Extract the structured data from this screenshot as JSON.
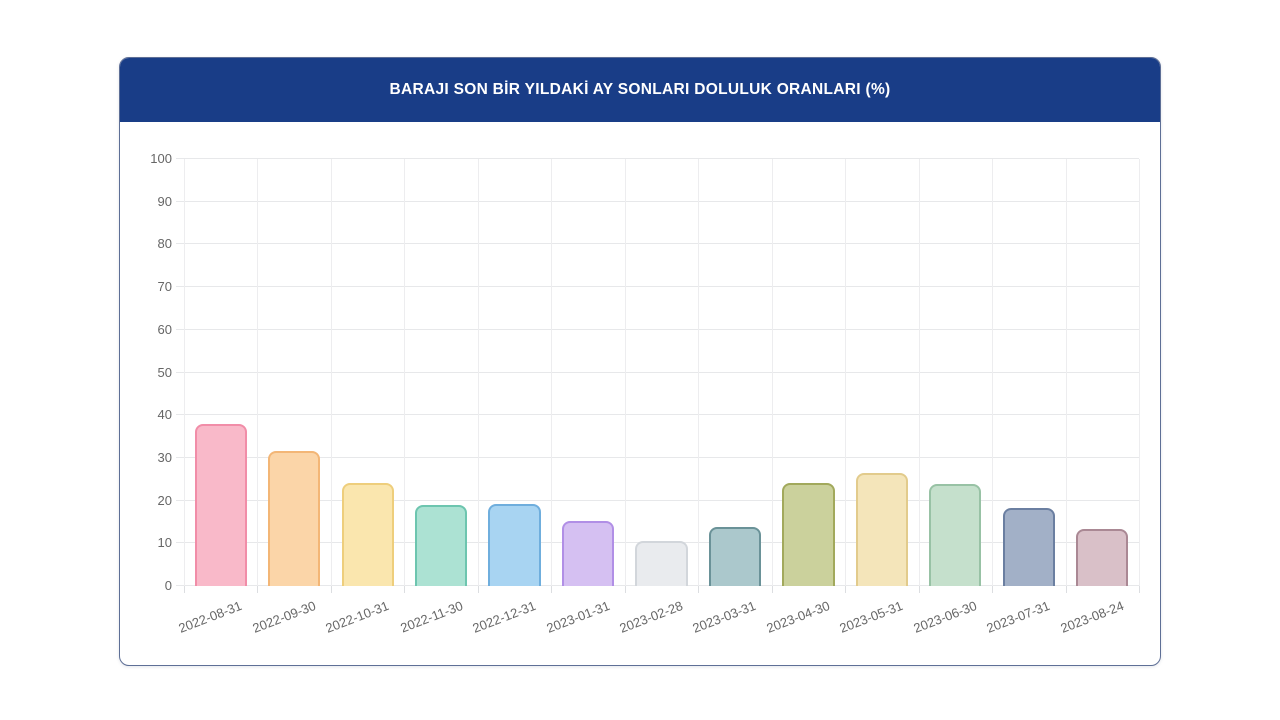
{
  "window": {
    "background": "#ffffff"
  },
  "card": {
    "title": "BARAJI SON BİR YILDAKİ AY SONLARI DOLULUK ORANLARI (%)",
    "header_bg": "#193d87",
    "header_text_color": "#ffffff",
    "border_color": "#5e6f96"
  },
  "chart_data": {
    "type": "bar",
    "title": "BARAJI SON BİR YILDAKİ AY SONLARI DOLULUK ORANLARI (%)",
    "xlabel": "",
    "ylabel": "",
    "categories": [
      "2022-08-31",
      "2022-09-30",
      "2022-10-31",
      "2022-11-30",
      "2022-12-31",
      "2023-01-31",
      "2023-02-28",
      "2023-03-31",
      "2023-04-30",
      "2023-05-31",
      "2023-06-30",
      "2023-07-31",
      "2023-08-24"
    ],
    "values": [
      38.0,
      31.7,
      24.2,
      18.9,
      19.3,
      15.3,
      10.6,
      13.8,
      24.2,
      26.4,
      24.0,
      18.3,
      13.4
    ],
    "bar_fill_colors": [
      "#f9b9c9",
      "#fbd5a8",
      "#fae6ae",
      "#ace2d3",
      "#a8d4f2",
      "#d5c0f2",
      "#e9ebee",
      "#abc8cc",
      "#cbd19c",
      "#f4e5ba",
      "#c5e0cc",
      "#a2b0c7",
      "#d9c0c8"
    ],
    "bar_border_colors": [
      "#f18da8",
      "#f3b676",
      "#eece7c",
      "#6dc5af",
      "#6faedd",
      "#b18fe6",
      "#d2d6db",
      "#6a9298",
      "#a2a95c",
      "#e2cb8c",
      "#98c2a5",
      "#6b7fa1",
      "#aa8894"
    ],
    "ylim": [
      0,
      100
    ],
    "yticks": [
      0,
      10,
      20,
      30,
      40,
      50,
      60,
      70,
      80,
      90,
      100
    ],
    "grid": true,
    "legend": false,
    "gridline_color": "#e7e8ea",
    "axis_label_color": "#666666",
    "x_label_rotation_deg": -21
  }
}
